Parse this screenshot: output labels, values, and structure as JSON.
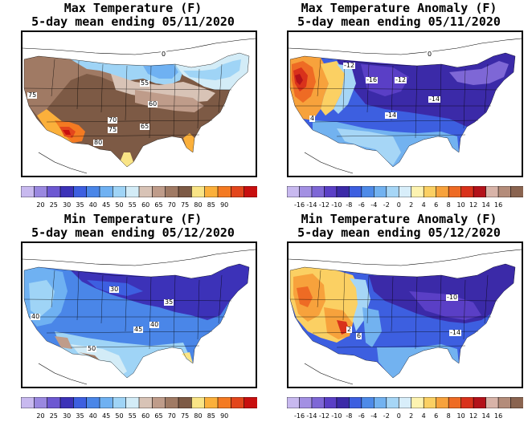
{
  "panels": [
    {
      "id": "max-temp",
      "title_line1": "Max Temperature (F)",
      "title_line2": "5-day mean ending 05/11/2020",
      "colorbar": {
        "colors": [
          "#c8b9ef",
          "#9a88e0",
          "#6d58d2",
          "#3c32b8",
          "#3d5fe0",
          "#4a86e8",
          "#6fb1f2",
          "#9fd4f6",
          "#d3ecf7",
          "#d8c3b6",
          "#bf9c8a",
          "#a07a64",
          "#7d5a45",
          "#f9e486",
          "#fbb03b",
          "#f47a22",
          "#e3461c",
          "#c80f0f"
        ],
        "labels": [
          "20",
          "25",
          "30",
          "35",
          "40",
          "45",
          "50",
          "55",
          "60",
          "65",
          "70",
          "75",
          "80",
          "85",
          "90"
        ]
      },
      "contour_labels": [
        "0",
        "75",
        "55",
        "60",
        "70",
        "75",
        "65",
        "80"
      ]
    },
    {
      "id": "max-anom",
      "title_line1": "Max Temperature Anomaly (F)",
      "title_line2": "5-day mean ending 05/11/2020",
      "colorbar": {
        "colors": [
          "#c8b9ef",
          "#a390e3",
          "#7e67d6",
          "#5a3fc6",
          "#3b2aa8",
          "#3d5fe0",
          "#4d8ae8",
          "#72b2f0",
          "#a6d6f6",
          "#d8eefa",
          "#fdf3b0",
          "#fbd063",
          "#f7a23c",
          "#ee6b24",
          "#d9321b",
          "#b3121a",
          "#d8b3a8",
          "#b48c7a",
          "#8a6450"
        ],
        "labels": [
          "-16",
          "-14",
          "-12",
          "-10",
          "-8",
          "-6",
          "-4",
          "-2",
          "0",
          "2",
          "4",
          "6",
          "8",
          "10",
          "12",
          "14",
          "16"
        ]
      },
      "contour_labels": [
        "0",
        "-12",
        "-16",
        "-12",
        "-14",
        "-14",
        "4"
      ]
    },
    {
      "id": "min-temp",
      "title_line1": "Min Temperature (F)",
      "title_line2": "5-day mean ending 05/12/2020",
      "colorbar": {
        "colors": [
          "#c8b9ef",
          "#9a88e0",
          "#6d58d2",
          "#3c32b8",
          "#3d5fe0",
          "#4a86e8",
          "#6fb1f2",
          "#9fd4f6",
          "#d3ecf7",
          "#d8c3b6",
          "#bf9c8a",
          "#a07a64",
          "#7d5a45",
          "#f9e486",
          "#fbb03b",
          "#f47a22",
          "#e3461c",
          "#c80f0f"
        ],
        "labels": [
          "20",
          "25",
          "30",
          "35",
          "40",
          "45",
          "50",
          "55",
          "60",
          "65",
          "70",
          "75",
          "80",
          "85",
          "90"
        ]
      },
      "contour_labels": [
        "30",
        "35",
        "40",
        "45",
        "40",
        "50"
      ]
    },
    {
      "id": "min-anom",
      "title_line1": "Min Temperature Anomaly (F)",
      "title_line2": "5-day mean ending 05/12/2020",
      "colorbar": {
        "colors": [
          "#c8b9ef",
          "#a390e3",
          "#7e67d6",
          "#5a3fc6",
          "#3b2aa8",
          "#3d5fe0",
          "#4d8ae8",
          "#72b2f0",
          "#a6d6f6",
          "#d8eefa",
          "#fdf3b0",
          "#fbd063",
          "#f7a23c",
          "#ee6b24",
          "#d9321b",
          "#b3121a",
          "#d8b3a8",
          "#b48c7a",
          "#8a6450"
        ],
        "labels": [
          "-16",
          "-14",
          "-12",
          "-10",
          "-8",
          "-6",
          "-4",
          "-2",
          "0",
          "2",
          "4",
          "6",
          "8",
          "10",
          "12",
          "14",
          "16"
        ]
      },
      "contour_labels": [
        "-10",
        "-14",
        "2",
        "6"
      ]
    }
  ]
}
